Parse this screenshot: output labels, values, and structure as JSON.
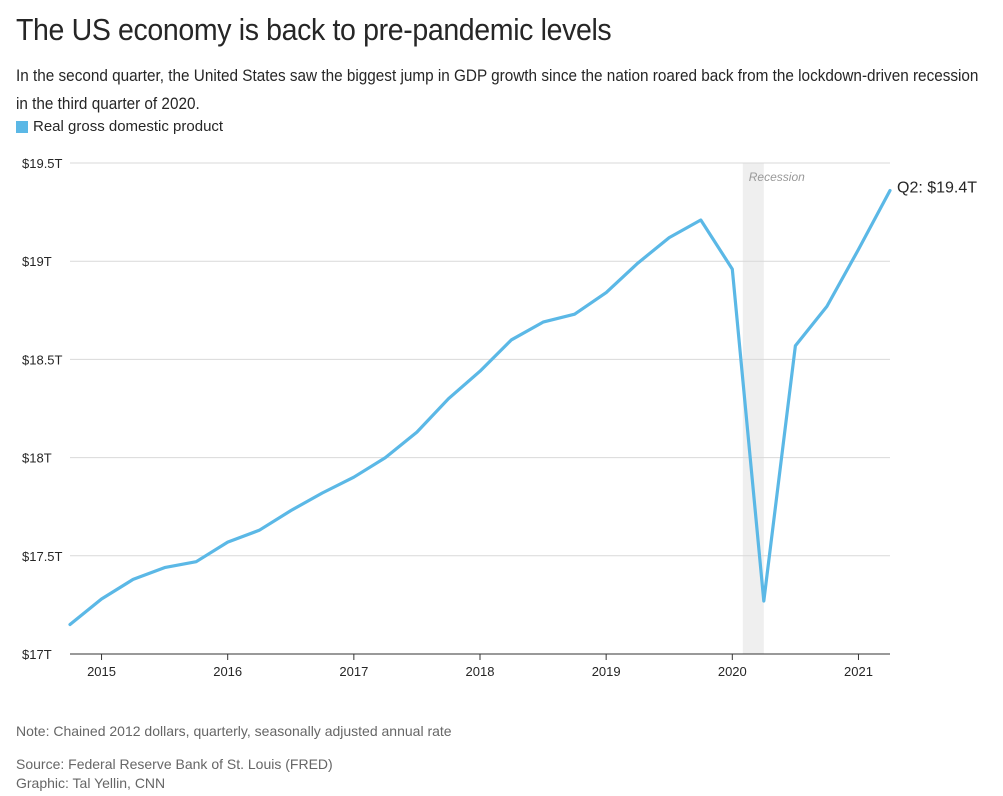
{
  "header": {
    "title": "The US economy is back to pre-pandemic levels",
    "subtitle": "In the second quarter, the United States saw the biggest jump in GDP growth since the nation roared back from the lockdown-driven recession in the third quarter of 2020."
  },
  "footer": {
    "note": "Note: Chained 2012 dollars, quarterly, seasonally adjusted annual rate",
    "source": "Source: Federal Reserve Bank of St. Louis (FRED)",
    "credit": "Graphic: Tal Yellin, CNN"
  },
  "colors": {
    "line": "#5bb8e6",
    "recession": "#efefef",
    "grid": "#d9d9d9",
    "axis": "#333333"
  },
  "chart_data": {
    "type": "line",
    "title": "The US economy is back to pre-pandemic levels",
    "xlabel": "",
    "ylabel": "",
    "ylim": [
      17,
      19.5
    ],
    "xlim": [
      2014.75,
      2021.25
    ],
    "grid": true,
    "legend": "top-left",
    "series": [
      {
        "name": "Real gross domestic product",
        "x": [
          2014.75,
          2015.0,
          2015.25,
          2015.5,
          2015.75,
          2016.0,
          2016.25,
          2016.5,
          2016.75,
          2017.0,
          2017.25,
          2017.5,
          2017.75,
          2018.0,
          2018.25,
          2018.5,
          2018.75,
          2019.0,
          2019.25,
          2019.5,
          2019.75,
          2020.0,
          2020.25,
          2020.5,
          2020.75,
          2021.0,
          2021.25
        ],
        "values": [
          17.15,
          17.28,
          17.38,
          17.44,
          17.47,
          17.57,
          17.63,
          17.73,
          17.82,
          17.9,
          18.0,
          18.13,
          18.3,
          18.44,
          18.6,
          18.69,
          18.73,
          18.84,
          18.99,
          19.12,
          19.21,
          18.96,
          17.27,
          18.57,
          18.77,
          19.06,
          19.36
        ]
      }
    ],
    "x_ticks": [
      2015,
      2016,
      2017,
      2018,
      2019,
      2020,
      2021
    ],
    "x_tick_labels": [
      "2015",
      "2016",
      "2017",
      "2018",
      "2019",
      "2020",
      "2021"
    ],
    "y_ticks": [
      17,
      17.5,
      18,
      18.5,
      19,
      19.5
    ],
    "y_tick_labels": [
      "$17T",
      "$17.5T",
      "$18T",
      "$18.5T",
      "$19T",
      "$19.5T"
    ],
    "annotations": [
      {
        "label": "Recession",
        "x_start": 2020.083,
        "x_end": 2020.25
      },
      {
        "label": "Q2: $19.4T",
        "x": 2021.25,
        "y": 19.36
      }
    ]
  }
}
